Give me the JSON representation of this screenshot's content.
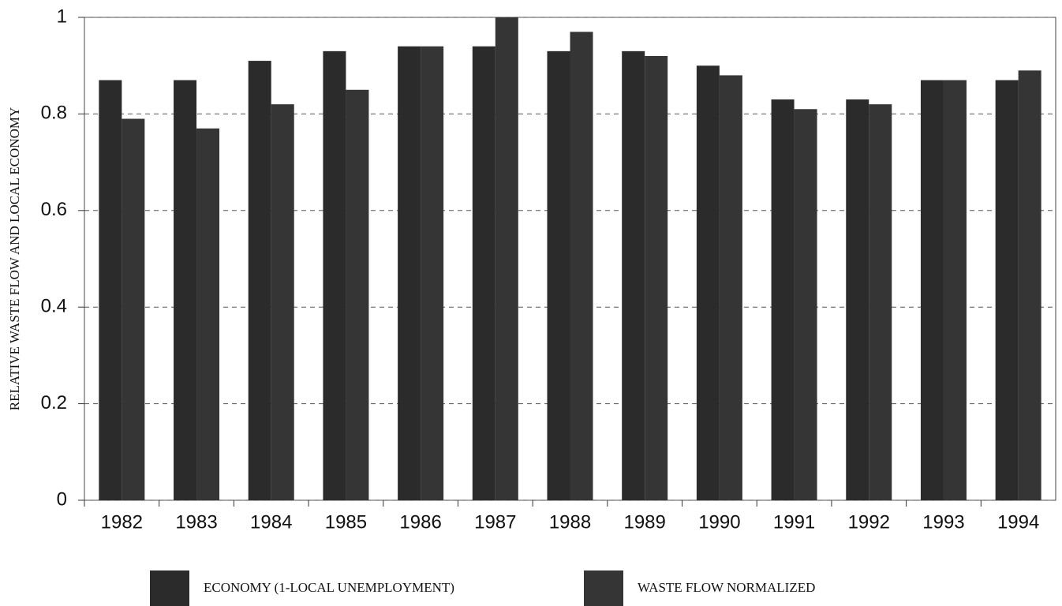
{
  "chart_data": {
    "type": "bar",
    "y_label": "RELATIVE WASTE FLOW AND LOCAL ECONOMY",
    "categories": [
      "1982",
      "1983",
      "1984",
      "1985",
      "1986",
      "1987",
      "1988",
      "1989",
      "1990",
      "1991",
      "1992",
      "1993",
      "1994"
    ],
    "series": [
      {
        "name": "ECONOMY (1-LOCAL UNEMPLOYMENT)",
        "color": "#2b2b2b",
        "values": [
          0.87,
          0.87,
          0.91,
          0.93,
          0.94,
          0.94,
          0.93,
          0.93,
          0.9,
          0.83,
          0.83,
          0.87,
          0.87
        ]
      },
      {
        "name": "WASTE FLOW NORMALIZED",
        "color": "#353535",
        "values": [
          0.79,
          0.77,
          0.82,
          0.85,
          0.94,
          1.0,
          0.97,
          0.92,
          0.88,
          0.81,
          0.82,
          0.87,
          0.89
        ]
      }
    ],
    "ylim": [
      0,
      1
    ],
    "yticks": [
      0,
      0.2,
      0.4,
      0.6,
      0.8,
      1
    ],
    "grid": true
  }
}
